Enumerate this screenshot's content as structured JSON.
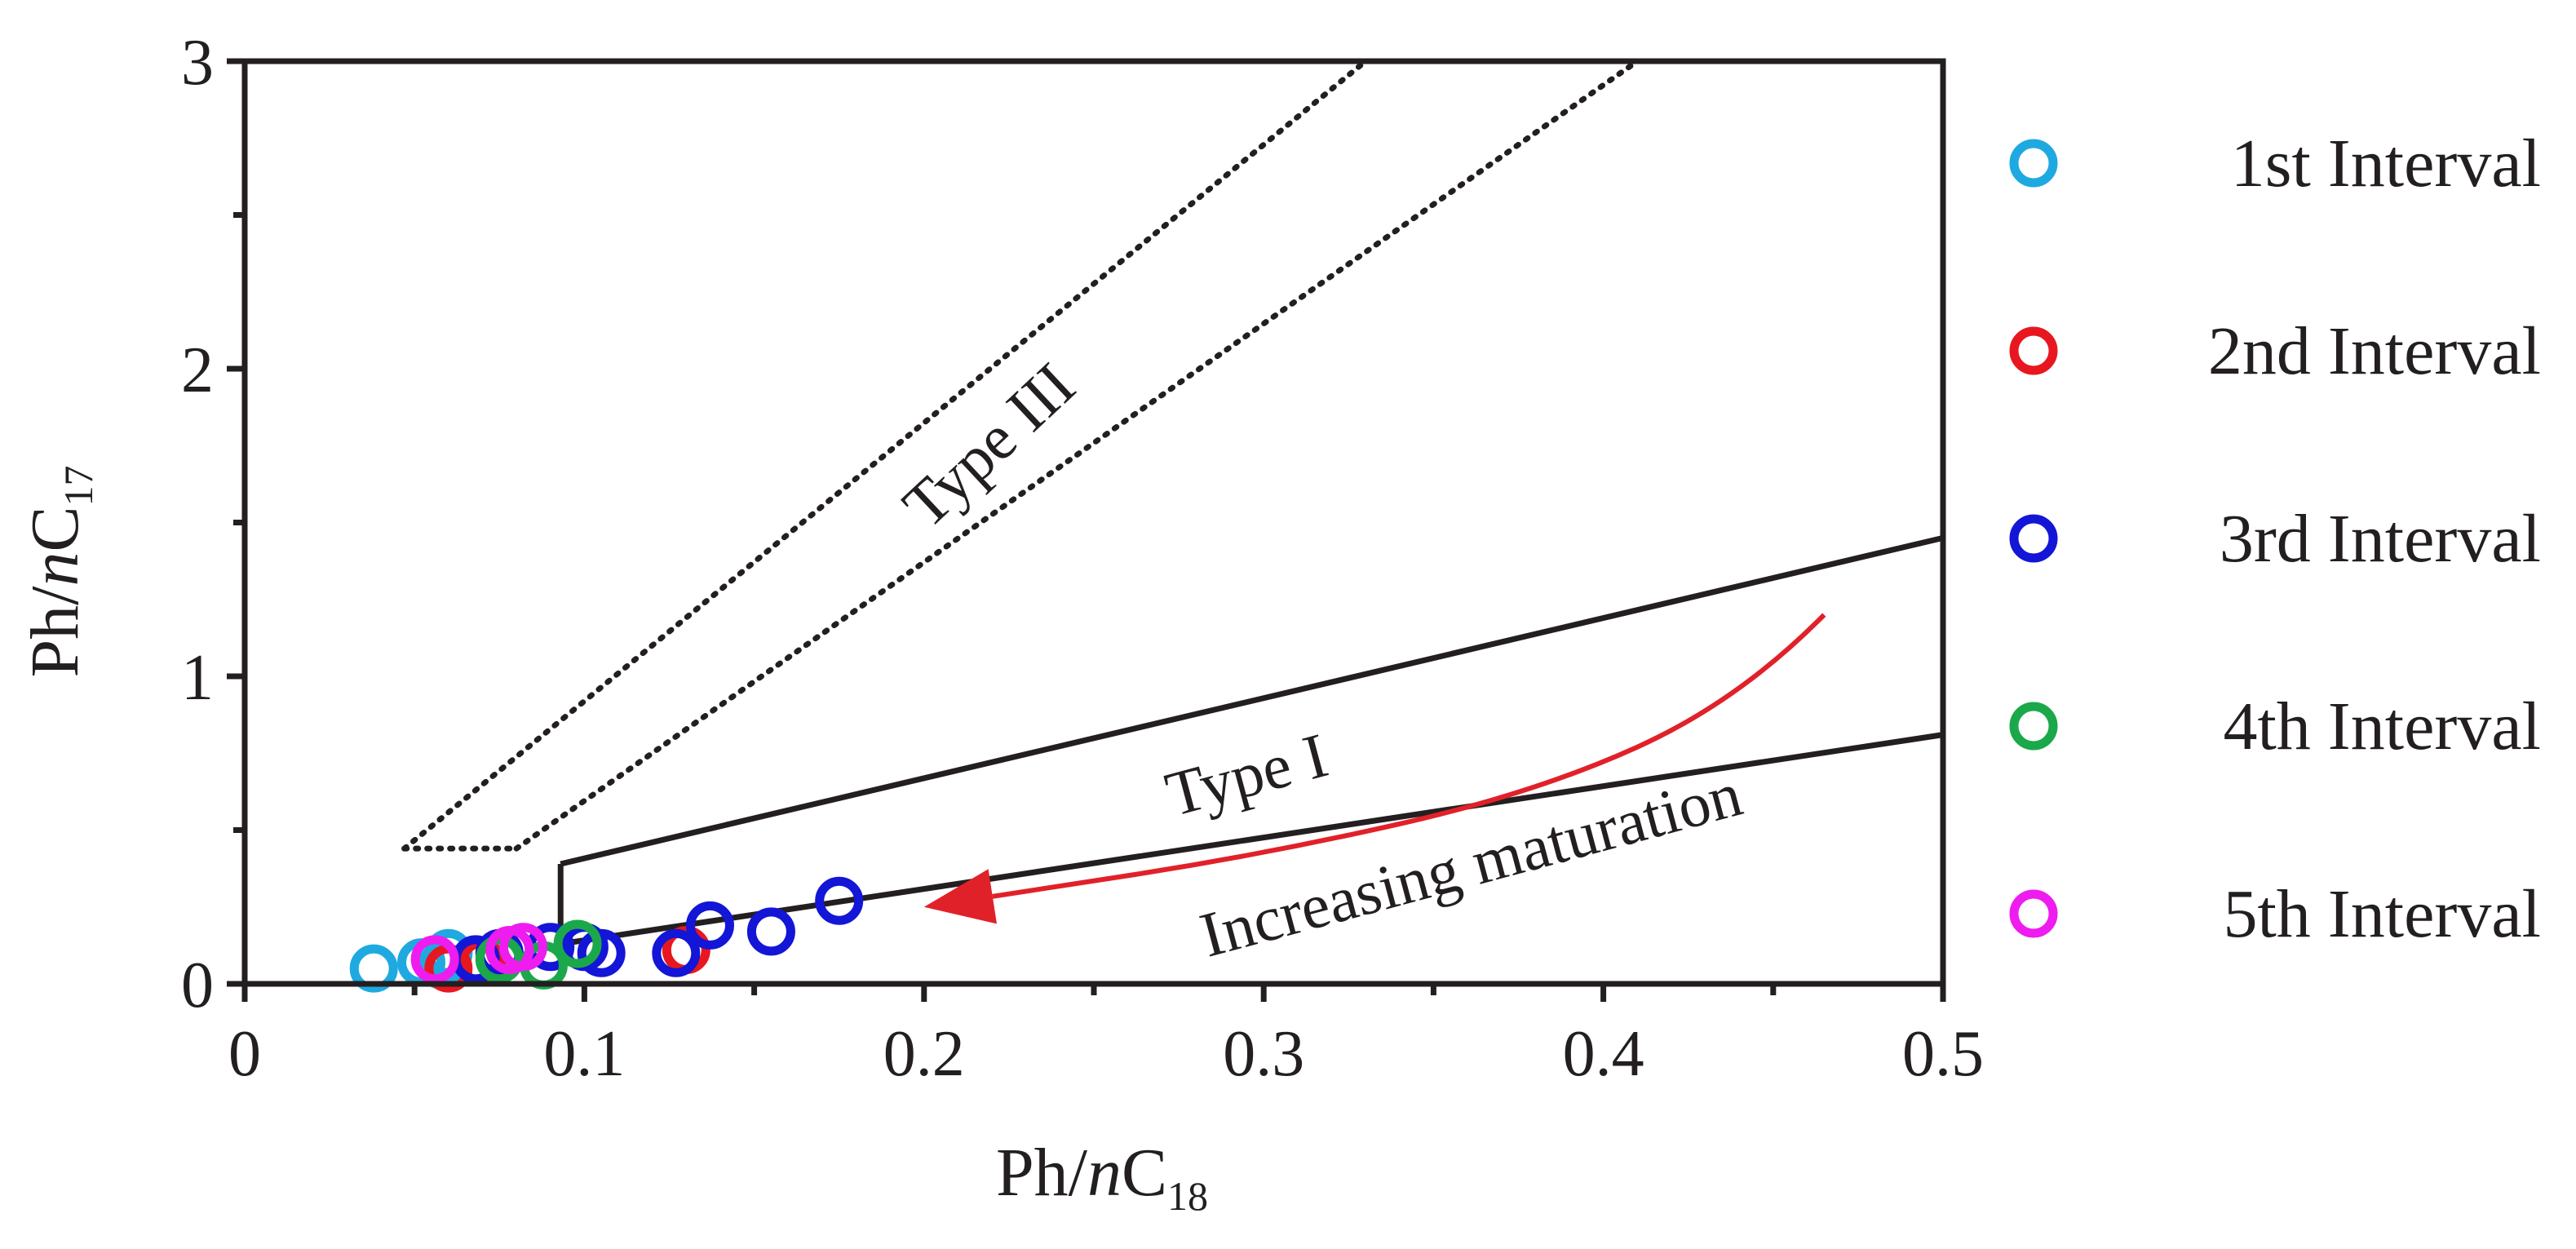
{
  "chart_data": {
    "type": "scatter",
    "xlabel": {
      "main": "Ph/",
      "italic": "n",
      "element": "C",
      "subscript": "18"
    },
    "ylabel": {
      "main": "Ph/",
      "italic": "n",
      "element": "C",
      "subscript": "17"
    },
    "xlim": [
      0,
      0.5
    ],
    "ylim": [
      0,
      3
    ],
    "xticks": [
      0,
      0.1,
      0.2,
      0.3,
      0.4,
      0.5
    ],
    "xtick_labels": [
      "0",
      "0.1",
      "0.2",
      "0.3",
      "0.4",
      "0.5"
    ],
    "yticks": [
      0,
      1,
      2,
      3
    ],
    "ytick_labels": [
      "0",
      "1",
      "2",
      "3"
    ],
    "grid": false,
    "legend_position": "right",
    "series": [
      {
        "name": "1st Interval",
        "color": "#1fa9e1",
        "points": [
          [
            0.038,
            0.05
          ],
          [
            0.052,
            0.07
          ],
          [
            0.058,
            0.06
          ],
          [
            0.06,
            0.1
          ]
        ]
      },
      {
        "name": "2nd Interval",
        "color": "#e8171f",
        "points": [
          [
            0.06,
            0.05
          ],
          [
            0.07,
            0.07
          ],
          [
            0.13,
            0.11
          ]
        ]
      },
      {
        "name": "3rd Interval",
        "color": "#1316d6",
        "points": [
          [
            0.068,
            0.08
          ],
          [
            0.075,
            0.1
          ],
          [
            0.09,
            0.12
          ],
          [
            0.1,
            0.12
          ],
          [
            0.105,
            0.1
          ],
          [
            0.127,
            0.1
          ],
          [
            0.137,
            0.19
          ],
          [
            0.155,
            0.17
          ],
          [
            0.175,
            0.27
          ]
        ]
      },
      {
        "name": "4th Interval",
        "color": "#1ba84b",
        "points": [
          [
            0.075,
            0.08
          ],
          [
            0.088,
            0.06
          ],
          [
            0.098,
            0.13
          ]
        ]
      },
      {
        "name": "5th Interval",
        "color": "#ee1cef",
        "points": [
          [
            0.056,
            0.08
          ],
          [
            0.078,
            0.11
          ],
          [
            0.082,
            0.12
          ]
        ]
      }
    ],
    "region_lines": {
      "type_iii_upper": [
        [
          0.047,
          0.44
        ],
        [
          0.33,
          3.0
        ]
      ],
      "type_iii_lower": [
        [
          0.08,
          0.44
        ],
        [
          0.41,
          3.0
        ]
      ],
      "type_iii_base": [
        [
          0.047,
          0.44
        ],
        [
          0.08,
          0.44
        ]
      ],
      "type_i_upper": [
        [
          0.093,
          0.39
        ],
        [
          0.5,
          1.45
        ]
      ],
      "type_i_lower": [
        [
          0.093,
          0.13
        ],
        [
          0.5,
          0.81
        ]
      ],
      "type_i_left": [
        [
          0.093,
          0.13
        ],
        [
          0.093,
          0.39
        ]
      ]
    },
    "maturation_arrow": {
      "color": "#e12129",
      "path": [
        [
          0.465,
          1.2
        ],
        [
          0.44,
          0.92
        ],
        [
          0.38,
          0.62
        ],
        [
          0.3,
          0.42
        ],
        [
          0.2,
          0.25
        ]
      ]
    },
    "annotations": {
      "type_iii": "Type III",
      "type_i": "Type I",
      "maturation": "Increasing maturation"
    }
  }
}
